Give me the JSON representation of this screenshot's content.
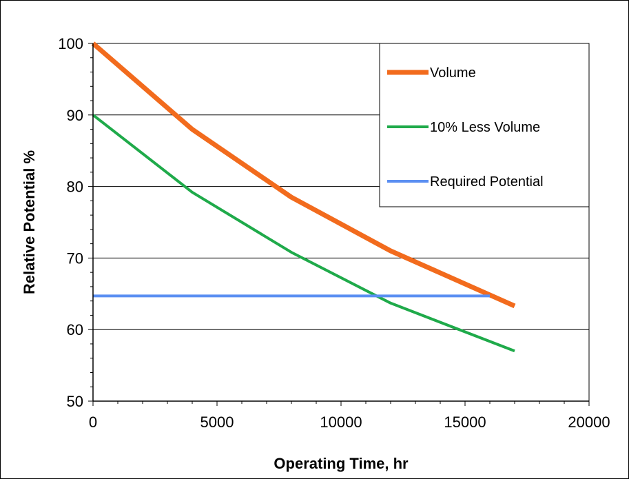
{
  "chart_data": {
    "type": "line",
    "xlabel": "Operating Time, hr",
    "ylabel": "Relative Potential %",
    "xlim": [
      0,
      20000
    ],
    "ylim": [
      50,
      100
    ],
    "x_ticks": [
      "0",
      "5000",
      "10000",
      "15000",
      "20000"
    ],
    "y_ticks": [
      "50",
      "60",
      "70",
      "80",
      "90",
      "100"
    ],
    "grid": "horizontal",
    "legend_position": "top-right",
    "series": [
      {
        "name": "Volume",
        "color": "#f26b1d",
        "width": "thick",
        "points": [
          [
            0,
            100
          ],
          [
            4000,
            88
          ],
          [
            8000,
            78.5
          ],
          [
            12000,
            71
          ],
          [
            17000,
            63.3
          ]
        ]
      },
      {
        "name": "10% Less Volume",
        "color": "#1faa4a",
        "width": "thin",
        "points": [
          [
            0,
            90
          ],
          [
            4000,
            79.2
          ],
          [
            8000,
            70.8
          ],
          [
            12000,
            63.7
          ],
          [
            17000,
            57
          ]
        ]
      },
      {
        "name": "Required Potential",
        "color": "#5b8ff2",
        "width": "thin",
        "points": [
          [
            0,
            64.7
          ],
          [
            16000,
            64.7
          ]
        ]
      }
    ]
  }
}
